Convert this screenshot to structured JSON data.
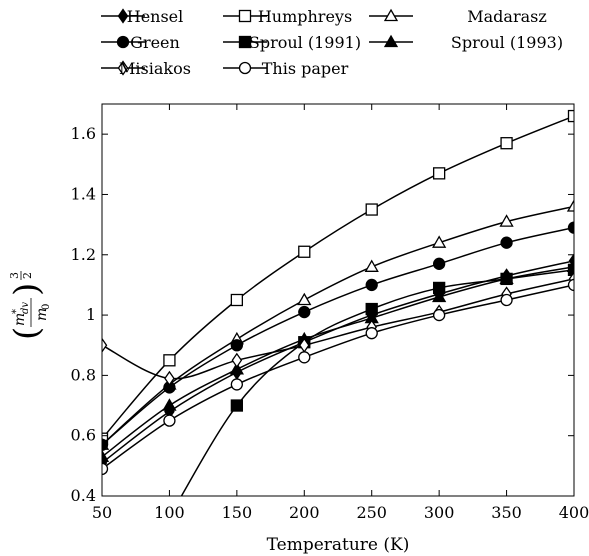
{
  "chart_data": {
    "type": "line",
    "title": "",
    "xlabel": "Temperature (K)",
    "ylabel": "(m*dv / m0)^(3/2)",
    "ylabel_parts": {
      "open": "(",
      "m": "m",
      "star": "*",
      "sub": "dv",
      "den": "m",
      "den_sub": "0",
      "close": ")",
      "exp_num": "3",
      "exp_den": "2"
    },
    "xlim": [
      50,
      400
    ],
    "ylim": [
      0.4,
      1.7
    ],
    "xticks": [
      50,
      100,
      150,
      200,
      250,
      300,
      350,
      400
    ],
    "yticks": [
      0.4,
      0.6,
      0.8,
      1.0,
      1.2,
      1.4,
      1.6
    ],
    "ytick_labels": [
      "0.4",
      "0.6",
      "0.8",
      "1",
      "1.2",
      "1.4",
      "1.6"
    ],
    "grid": false,
    "legend_position": "top",
    "series": [
      {
        "name": "Hensel",
        "marker": "filled-diamond",
        "x": [
          50,
          100,
          150,
          200,
          250,
          300,
          350,
          400
        ],
        "y": [
          0.51,
          0.68,
          0.81,
          0.91,
          1.0,
          1.07,
          1.13,
          1.18
        ]
      },
      {
        "name": "Humphreys",
        "marker": "open-square",
        "x": [
          50,
          100,
          150,
          200,
          250,
          300,
          350,
          400
        ],
        "y": [
          0.59,
          0.85,
          1.05,
          1.21,
          1.35,
          1.47,
          1.57,
          1.66
        ]
      },
      {
        "name": "Madarasz",
        "marker": "open-triangle",
        "x": [
          50,
          100,
          150,
          200,
          250,
          300,
          350,
          400
        ],
        "y": [
          0.57,
          0.77,
          0.92,
          1.05,
          1.16,
          1.24,
          1.31,
          1.36
        ]
      },
      {
        "name": "Green",
        "marker": "filled-circle",
        "x": [
          50,
          100,
          150,
          200,
          250,
          300,
          350,
          400
        ],
        "y": [
          0.57,
          0.76,
          0.9,
          1.01,
          1.1,
          1.17,
          1.24,
          1.29
        ]
      },
      {
        "name": "Sproul (1991)",
        "marker": "filled-square",
        "x": [
          100,
          150,
          200,
          250,
          300,
          350,
          400
        ],
        "y": [
          0.33,
          0.7,
          0.91,
          1.02,
          1.09,
          1.12,
          1.15
        ]
      },
      {
        "name": "Sproul (1993)",
        "marker": "filled-triangle",
        "x": [
          50,
          100,
          150,
          200,
          250,
          300,
          350,
          400
        ],
        "y": [
          0.53,
          0.7,
          0.82,
          0.92,
          0.99,
          1.06,
          1.12,
          1.16
        ]
      },
      {
        "name": "Misiakos",
        "marker": "open-diamond",
        "x": [
          50,
          100,
          150,
          200,
          250,
          300,
          350,
          400
        ],
        "y": [
          0.9,
          0.79,
          0.85,
          0.9,
          0.96,
          1.01,
          1.07,
          1.12
        ]
      },
      {
        "name": "This paper",
        "marker": "open-circle",
        "x": [
          50,
          100,
          150,
          200,
          250,
          300,
          350,
          400
        ],
        "y": [
          0.49,
          0.65,
          0.77,
          0.86,
          0.94,
          1.0,
          1.05,
          1.1
        ]
      }
    ]
  }
}
